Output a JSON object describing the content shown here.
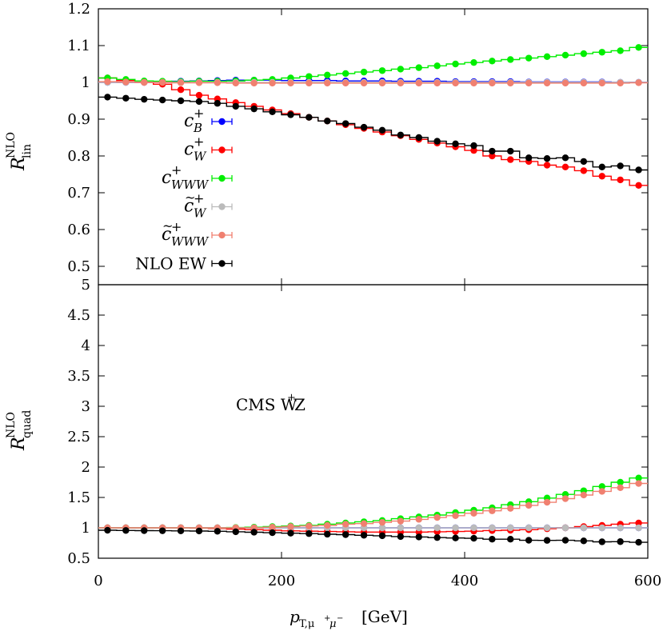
{
  "chart_data": [
    {
      "type": "line",
      "panel": "top",
      "ylabel": "R",
      "ylabel_sup": "NLO",
      "ylabel_sub": "lin",
      "ylim": [
        0.45,
        1.2
      ],
      "yticks": [
        "0.5",
        "0.6",
        "0.7",
        "0.8",
        "0.9",
        "1",
        "1.1",
        "1.2"
      ],
      "xlim": [
        0,
        600
      ],
      "grid": false,
      "legend_position": "left-middle",
      "series": [
        {
          "name": "c_B^+",
          "color": "#0000ff",
          "values": [
            1.0,
            1.0,
            1.0,
            1.002,
            1.003,
            1.004,
            1.005,
            1.006,
            1.006,
            1.006,
            1.005,
            1.005,
            1.005,
            1.004,
            1.004,
            1.004,
            1.003,
            1.003,
            1.003,
            1.002,
            1.002,
            1.002,
            1.002,
            1.001,
            1.001,
            1.001,
            1.001,
            1.001,
            1.0,
            1.0
          ]
        },
        {
          "name": "c_W^+",
          "color": "#ff0000",
          "values": [
            1.012,
            1.005,
            1.0,
            0.995,
            0.98,
            0.965,
            0.955,
            0.945,
            0.935,
            0.925,
            0.915,
            0.905,
            0.895,
            0.885,
            0.875,
            0.865,
            0.855,
            0.845,
            0.835,
            0.825,
            0.815,
            0.8,
            0.79,
            0.785,
            0.775,
            0.77,
            0.76,
            0.745,
            0.735,
            0.72
          ]
        },
        {
          "name": "c_WWW^+",
          "color": "#00ee00",
          "values": [
            1.012,
            1.008,
            1.004,
            1.003,
            1.002,
            1.003,
            1.003,
            1.004,
            1.006,
            1.008,
            1.012,
            1.016,
            1.02,
            1.024,
            1.028,
            1.032,
            1.036,
            1.04,
            1.045,
            1.05,
            1.054,
            1.058,
            1.062,
            1.066,
            1.07,
            1.074,
            1.078,
            1.082,
            1.086,
            1.095
          ]
        },
        {
          "name": "c~_W^+",
          "color": "#bbbbbb",
          "values": [
            1.0,
            1.0,
            1.0,
            1.0,
            1.0,
            1.0,
            1.0,
            1.0,
            1.0,
            1.0,
            1.0,
            1.0,
            1.0,
            1.0,
            1.0,
            1.0,
            1.0,
            1.0,
            1.0,
            1.0,
            1.0,
            1.0,
            1.0,
            1.0,
            1.0,
            1.0,
            1.0,
            1.0,
            1.0,
            1.0
          ]
        },
        {
          "name": "c~_WWW^+",
          "color": "#f08070",
          "values": [
            1.002,
            1.001,
            1.0,
            1.0,
            0.999,
            0.999,
            0.999,
            0.998,
            0.998,
            0.998,
            0.998,
            0.998,
            0.998,
            0.998,
            0.998,
            0.998,
            0.998,
            0.998,
            0.998,
            0.998,
            0.998,
            0.998,
            0.998,
            0.998,
            0.998,
            0.998,
            0.998,
            0.998,
            0.998,
            0.999
          ]
        },
        {
          "name": "NLO EW",
          "color": "#000000",
          "values": [
            0.96,
            0.957,
            0.954,
            0.952,
            0.95,
            0.948,
            0.943,
            0.935,
            0.928,
            0.92,
            0.912,
            0.905,
            0.895,
            0.888,
            0.878,
            0.87,
            0.857,
            0.85,
            0.84,
            0.833,
            0.828,
            0.813,
            0.813,
            0.795,
            0.793,
            0.795,
            0.785,
            0.77,
            0.773,
            0.762
          ]
        }
      ]
    },
    {
      "type": "line",
      "panel": "bottom",
      "ylabel": "R",
      "ylabel_sup": "NLO",
      "ylabel_sub": "quad",
      "ylim": [
        0.5,
        5.0
      ],
      "yticks": [
        "0.5",
        "1",
        "1.5",
        "2",
        "2.5",
        "3",
        "3.5",
        "4",
        "4.5",
        "5"
      ],
      "xlim": [
        0,
        600
      ],
      "xticks": [
        "0",
        "200",
        "400",
        "600"
      ],
      "xlabel": "p_T,μ+μ− [GeV]",
      "annotation": "CMS W+Z",
      "grid": false,
      "series": [
        {
          "name": "c_B^+",
          "color": "#0000ff",
          "values": [
            1.0,
            1.0,
            1.0,
            1.0,
            1.0,
            1.0,
            1.0,
            1.0,
            1.0,
            1.0,
            1.0,
            1.0,
            1.0,
            1.0,
            1.0,
            1.0,
            1.0,
            1.0,
            1.0,
            1.0,
            1.0,
            1.0,
            1.0,
            1.0,
            1.0,
            1.0,
            1.0,
            1.0,
            1.0,
            1.0
          ]
        },
        {
          "name": "c_W^+",
          "color": "#ff0000",
          "values": [
            1.0,
            1.0,
            1.0,
            1.0,
            1.0,
            0.995,
            0.99,
            0.98,
            0.97,
            0.96,
            0.95,
            0.945,
            0.94,
            0.935,
            0.93,
            0.93,
            0.93,
            0.93,
            0.935,
            0.94,
            0.945,
            0.955,
            0.96,
            0.97,
            0.985,
            1.0,
            1.02,
            1.04,
            1.06,
            1.08
          ]
        },
        {
          "name": "c_WWW^+",
          "color": "#00ee00",
          "values": [
            1.0,
            1.0,
            1.0,
            1.0,
            1.0,
            1.0,
            1.0,
            1.005,
            1.01,
            1.02,
            1.03,
            1.04,
            1.06,
            1.08,
            1.1,
            1.12,
            1.15,
            1.18,
            1.21,
            1.25,
            1.29,
            1.33,
            1.38,
            1.43,
            1.49,
            1.55,
            1.61,
            1.68,
            1.75,
            1.82
          ]
        },
        {
          "name": "c~_W^+",
          "color": "#bbbbbb",
          "values": [
            1.0,
            1.0,
            1.0,
            1.0,
            1.0,
            1.0,
            1.0,
            1.0,
            1.0,
            1.0,
            1.0,
            1.0,
            1.0,
            1.0,
            1.0,
            1.0,
            1.0,
            1.0,
            1.0,
            1.0,
            1.0,
            1.0,
            1.0,
            1.0,
            1.0,
            1.0,
            1.0,
            1.0,
            1.0,
            1.0
          ]
        },
        {
          "name": "c~_WWW^+",
          "color": "#f08070",
          "values": [
            1.0,
            1.0,
            1.0,
            1.0,
            1.0,
            1.0,
            1.0,
            1.0,
            1.0,
            1.01,
            1.02,
            1.03,
            1.04,
            1.06,
            1.07,
            1.09,
            1.11,
            1.14,
            1.17,
            1.2,
            1.24,
            1.28,
            1.32,
            1.37,
            1.42,
            1.48,
            1.54,
            1.6,
            1.66,
            1.73
          ]
        },
        {
          "name": "NLO EW",
          "color": "#000000",
          "values": [
            0.96,
            0.957,
            0.954,
            0.952,
            0.95,
            0.948,
            0.943,
            0.935,
            0.928,
            0.92,
            0.912,
            0.905,
            0.895,
            0.888,
            0.878,
            0.87,
            0.857,
            0.85,
            0.84,
            0.833,
            0.828,
            0.813,
            0.813,
            0.795,
            0.793,
            0.795,
            0.785,
            0.77,
            0.773,
            0.762
          ]
        }
      ]
    }
  ],
  "legend": {
    "items": [
      {
        "base": "c",
        "tilde": false,
        "sup": "+",
        "sub": "B",
        "color": "#0000ff"
      },
      {
        "base": "c",
        "tilde": false,
        "sup": "+",
        "sub": "W",
        "color": "#ff0000"
      },
      {
        "base": "c",
        "tilde": false,
        "sup": "+",
        "sub": "WWW",
        "color": "#00ee00"
      },
      {
        "base": "c",
        "tilde": true,
        "sup": "+",
        "sub": "W",
        "color": "#bbbbbb"
      },
      {
        "base": "c",
        "tilde": true,
        "sup": "+",
        "sub": "WWW",
        "color": "#f08070"
      },
      {
        "base": "NLO EW",
        "tilde": false,
        "sup": "",
        "sub": "",
        "color": "#000000"
      }
    ]
  },
  "xlabel": {
    "main": "p",
    "sub": "T,μ",
    "sub_sup1": "+",
    "sub_mid": "μ",
    "sub_sup2": "−",
    "unit": "[GeV]"
  },
  "annotation": {
    "text": "CMS W",
    "sup": "+",
    "tail": "Z"
  }
}
